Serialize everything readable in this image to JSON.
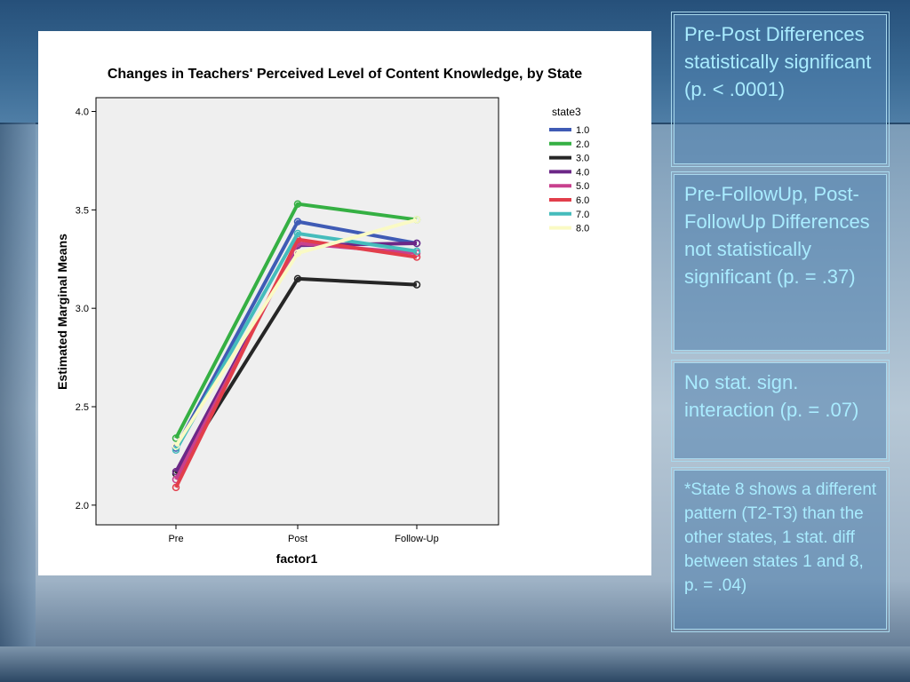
{
  "notes": [
    "Pre-Post Differences statistically significant (p. < .0001)",
    "Pre-FollowUp, Post-FollowUp Differences not statistically significant (p. = .37)",
    "No stat. sign. interaction (p. = .07)",
    "*State 8 shows a different pattern (T2-T3) than the other states, 1 stat. diff between states 1 and 8, p. = .04)"
  ],
  "chart_data": {
    "type": "line",
    "title": "Changes in Teachers' Perceived Level of Content Knowledge, by State",
    "xlabel": "factor1",
    "ylabel": "Estimated Marginal Means",
    "categories": [
      "Pre",
      "Post",
      "Follow-Up"
    ],
    "ylim": [
      1.9,
      4.07
    ],
    "yticks": [
      "2.0",
      "2.5",
      "3.0",
      "3.5",
      "4.0"
    ],
    "legend_title": "state3",
    "legend_position": "right",
    "series": [
      {
        "name": "1.0",
        "color": "#3f5bb5",
        "values": [
          2.29,
          3.44,
          3.33
        ]
      },
      {
        "name": "2.0",
        "color": "#35b043",
        "values": [
          2.34,
          3.53,
          3.45
        ]
      },
      {
        "name": "3.0",
        "color": "#262626",
        "values": [
          2.16,
          3.15,
          3.12
        ]
      },
      {
        "name": "4.0",
        "color": "#6c2787",
        "values": [
          2.17,
          3.32,
          3.33
        ]
      },
      {
        "name": "5.0",
        "color": "#c8408e",
        "values": [
          2.13,
          3.33,
          3.28
        ]
      },
      {
        "name": "6.0",
        "color": "#e23e4b",
        "values": [
          2.09,
          3.35,
          3.26
        ]
      },
      {
        "name": "7.0",
        "color": "#45bcbc",
        "values": [
          2.28,
          3.38,
          3.29
        ]
      },
      {
        "name": "8.0",
        "color": "#fafac4",
        "values": [
          2.3,
          3.28,
          3.45
        ]
      }
    ]
  }
}
